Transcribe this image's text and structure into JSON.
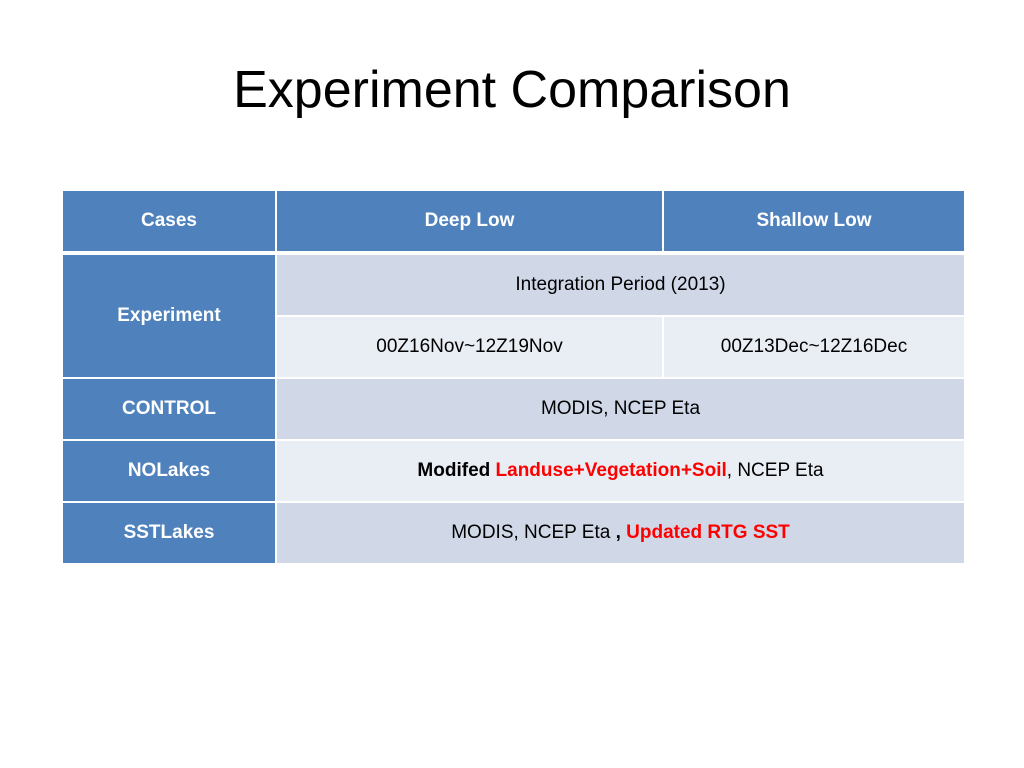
{
  "slide": {
    "title": "Experiment Comparison"
  },
  "table": {
    "headers": [
      "Cases",
      "Deep Low",
      "Shallow Low"
    ],
    "experiment": {
      "label": "Experiment",
      "integration_period": "Integration Period (2013)",
      "deep_low_period": "00Z16Nov~12Z19Nov",
      "shallow_low_period": "00Z13Dec~12Z16Dec"
    },
    "control": {
      "label": "CONTROL",
      "value": "MODIS, NCEP Eta"
    },
    "nolakes": {
      "label": "NOLakes",
      "part1": "Modifed",
      "part2": "Landuse+Vegetation+Soil",
      "part3": ", NCEP Eta"
    },
    "sstlakes": {
      "label": "SSTLakes",
      "part1": "MODIS, NCEP Eta",
      "part2": ",",
      "part3": "Updated RTG SST"
    }
  },
  "colors": {
    "header_blue": "#4f81bd",
    "band_dark": "#d0d8e8",
    "band_light": "#e9edf4",
    "highlight_red": "#ff0000"
  }
}
